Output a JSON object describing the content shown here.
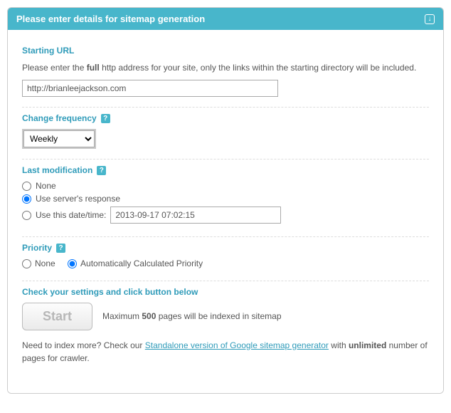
{
  "header": {
    "title": "Please enter details for sitemap generation"
  },
  "startingUrl": {
    "title": "Starting URL",
    "desc_pre": "Please enter the ",
    "desc_bold": "full",
    "desc_post": " http address for your site, only the links within the starting directory will be included.",
    "value": "http://brianleejackson.com"
  },
  "changeFreq": {
    "title": "Change frequency",
    "value": "Weekly"
  },
  "lastMod": {
    "title": "Last modification",
    "opt_none": "None",
    "opt_server": "Use server's response",
    "opt_date": "Use this date/time:",
    "date_value": "2013-09-17 07:02:15"
  },
  "priority": {
    "title": "Priority",
    "opt_none": "None",
    "opt_auto": "Automatically Calculated Priority"
  },
  "final": {
    "title": "Check your settings and click button below",
    "start_label": "Start",
    "max_pre": "Maximum ",
    "max_bold": "500",
    "max_post": " pages will be indexed in sitemap",
    "more_pre": "Need to index more? Check our ",
    "more_link": "Standalone version of Google sitemap generator",
    "more_mid": " with ",
    "more_bold": "unlimited",
    "more_post": " number of pages for crawler."
  }
}
